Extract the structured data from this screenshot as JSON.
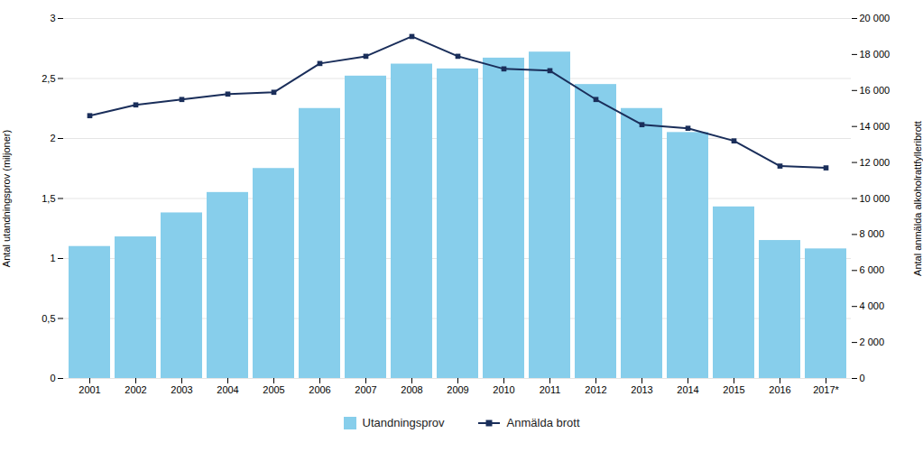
{
  "chart_data": {
    "type": "bar",
    "categories": [
      "2001",
      "2002",
      "2003",
      "2004",
      "2005",
      "2006",
      "2007",
      "2008",
      "2009",
      "2010",
      "2011",
      "2012",
      "2013",
      "2014",
      "2015",
      "2016",
      "2017*"
    ],
    "series": [
      {
        "name": "Utandningsprov",
        "type": "bar",
        "color": "#87CEEB",
        "values": [
          1.1,
          1.18,
          1.38,
          1.55,
          1.75,
          2.25,
          2.52,
          2.62,
          2.58,
          2.67,
          2.72,
          2.45,
          2.25,
          2.05,
          1.43,
          1.15,
          1.08
        ]
      },
      {
        "name": "Anmälda brott",
        "type": "line",
        "axis": "y2",
        "color": "#1a2e5a",
        "marker": "square",
        "values": [
          14600,
          15200,
          15500,
          15800,
          15900,
          17500,
          17900,
          19000,
          17900,
          17200,
          17100,
          15500,
          14100,
          13900,
          13200,
          11800,
          11700
        ]
      }
    ],
    "ylabel": "Antal utandningsprov (miljoner)",
    "y2label": "Antal anmälda alkoholrattfylleribrott",
    "ylim": [
      0,
      3
    ],
    "yticks": [
      0,
      {
        "value": 0.5,
        "label": "0,5"
      },
      1,
      {
        "value": 1.5,
        "label": "1,5"
      },
      2,
      {
        "value": 2.5,
        "label": "2,5"
      },
      3
    ],
    "y2lim": [
      0,
      20000
    ],
    "y2ticks": [
      0,
      {
        "value": 2000,
        "label": "2 000"
      },
      {
        "value": 4000,
        "label": "4 000"
      },
      {
        "value": 6000,
        "label": "6 000"
      },
      {
        "value": 8000,
        "label": "8 000"
      },
      {
        "value": 10000,
        "label": "10 000"
      },
      {
        "value": 12000,
        "label": "12 000"
      },
      {
        "value": 14000,
        "label": "14 000"
      },
      {
        "value": 16000,
        "label": "16 000"
      },
      {
        "value": 18000,
        "label": "18 000"
      },
      {
        "value": 20000,
        "label": "20 000"
      }
    ],
    "grid": true,
    "legend": "bottom"
  }
}
